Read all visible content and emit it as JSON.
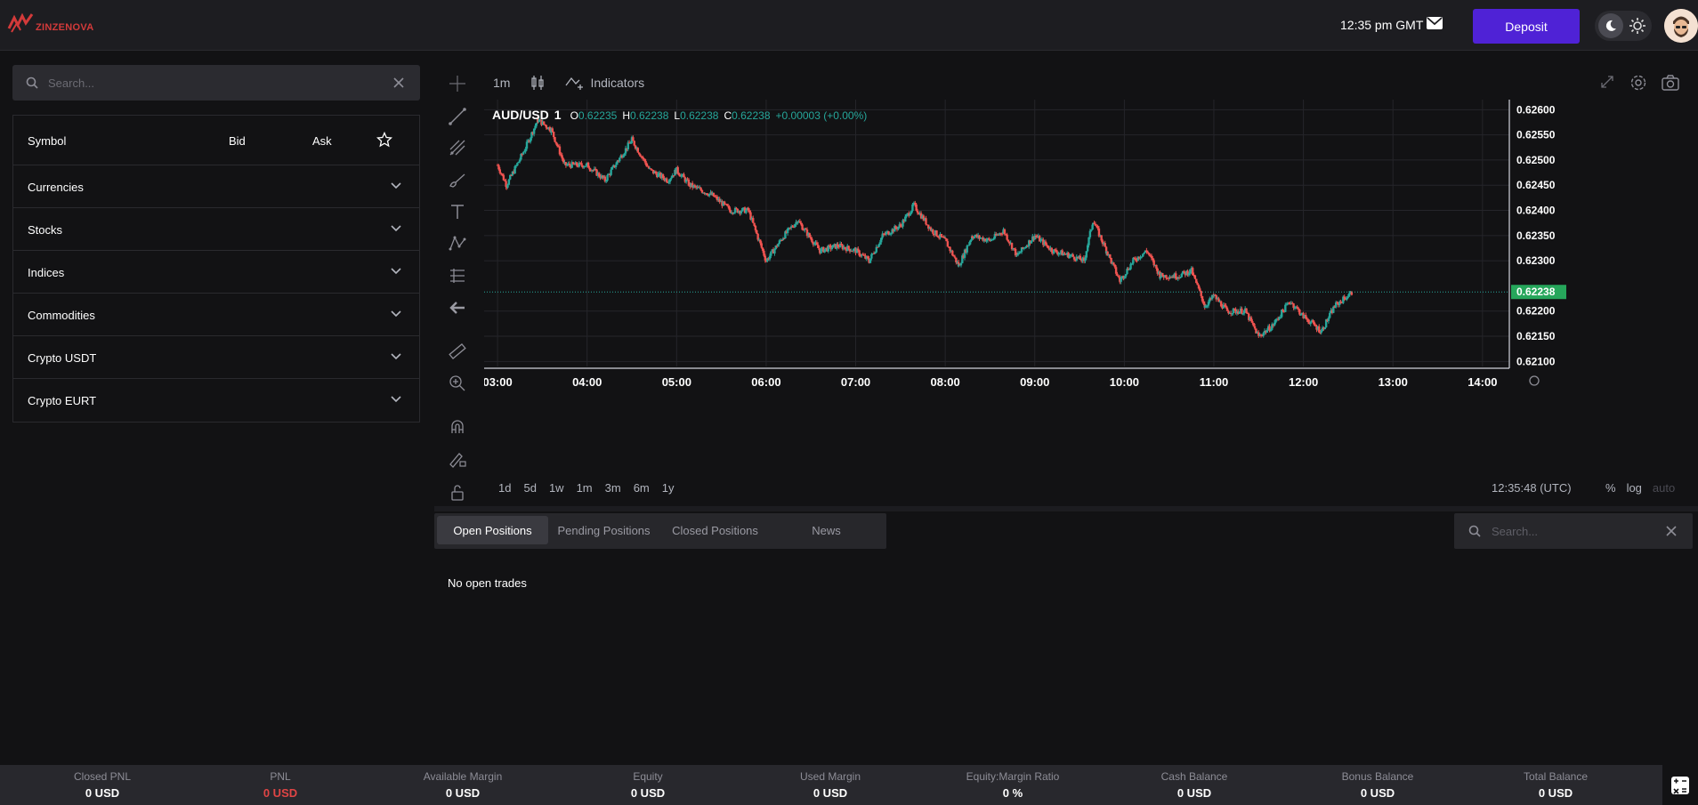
{
  "header": {
    "brand": "ZINZENOVA",
    "clock": "12:35 pm GMT",
    "deposit_label": "Deposit"
  },
  "sidebar": {
    "search_placeholder": "Search...",
    "columns": {
      "symbol": "Symbol",
      "bid": "Bid",
      "ask": "Ask"
    },
    "categories": [
      "Currencies",
      "Stocks",
      "Indices",
      "Commodities",
      "Crypto USDT",
      "Crypto EURT"
    ]
  },
  "chart_toolbar": {
    "timeframe": "1m",
    "indicators_label": "Indicators"
  },
  "chart_header": {
    "symbol": "AUD/USD",
    "interval": "1",
    "o_label": "O",
    "o": "0.62235",
    "h_label": "H",
    "h": "0.62238",
    "l_label": "L",
    "l": "0.62238",
    "c_label": "C",
    "c": "0.62238",
    "change": "+0.00003 (+0.00%)"
  },
  "chart_data": {
    "type": "candlestick",
    "series": [
      {
        "values": [
          [
            3.0,
            0.6249
          ],
          [
            3.1,
            0.6245
          ],
          [
            3.3,
            0.6252
          ],
          [
            3.45,
            0.6258
          ],
          [
            3.6,
            0.6256
          ],
          [
            3.75,
            0.6249
          ],
          [
            4.0,
            0.6249
          ],
          [
            4.2,
            0.6246
          ],
          [
            4.35,
            0.625
          ],
          [
            4.5,
            0.6254
          ],
          [
            4.7,
            0.6248
          ],
          [
            4.9,
            0.6246
          ],
          [
            5.0,
            0.6248
          ],
          [
            5.15,
            0.6245
          ],
          [
            5.4,
            0.6243
          ],
          [
            5.6,
            0.624
          ],
          [
            5.8,
            0.624
          ],
          [
            6.0,
            0.623
          ],
          [
            6.2,
            0.6235
          ],
          [
            6.35,
            0.6238
          ],
          [
            6.6,
            0.6232
          ],
          [
            6.8,
            0.6233
          ],
          [
            7.0,
            0.6232
          ],
          [
            7.15,
            0.623
          ],
          [
            7.3,
            0.6235
          ],
          [
            7.5,
            0.6237
          ],
          [
            7.65,
            0.6241
          ],
          [
            7.85,
            0.6236
          ],
          [
            8.0,
            0.6234
          ],
          [
            8.15,
            0.6229
          ],
          [
            8.3,
            0.6235
          ],
          [
            8.5,
            0.6234
          ],
          [
            8.65,
            0.6236
          ],
          [
            8.8,
            0.6231
          ],
          [
            9.0,
            0.6235
          ],
          [
            9.2,
            0.6232
          ],
          [
            9.4,
            0.6231
          ],
          [
            9.55,
            0.623
          ],
          [
            9.65,
            0.6238
          ],
          [
            9.8,
            0.6232
          ],
          [
            9.95,
            0.6226
          ],
          [
            10.1,
            0.623
          ],
          [
            10.25,
            0.6232
          ],
          [
            10.4,
            0.6227
          ],
          [
            10.6,
            0.6227
          ],
          [
            10.75,
            0.6228
          ],
          [
            10.9,
            0.6221
          ],
          [
            11.0,
            0.6223
          ],
          [
            11.15,
            0.622
          ],
          [
            11.35,
            0.622
          ],
          [
            11.5,
            0.6215
          ],
          [
            11.65,
            0.6217
          ],
          [
            11.85,
            0.6222
          ],
          [
            12.0,
            0.6219
          ],
          [
            12.2,
            0.6216
          ],
          [
            12.35,
            0.6221
          ],
          [
            12.55,
            0.62238
          ]
        ]
      }
    ],
    "x_range": [
      2.85,
      14.3
    ],
    "y_range": [
      0.6209,
      0.6262
    ],
    "x_ticks": [
      "03:00",
      "04:00",
      "05:00",
      "06:00",
      "07:00",
      "08:00",
      "09:00",
      "10:00",
      "11:00",
      "12:00",
      "13:00",
      "14:00"
    ],
    "x_tick_values": [
      3,
      4,
      5,
      6,
      7,
      8,
      9,
      10,
      11,
      12,
      13,
      14
    ],
    "y_ticks": [
      "0.62600",
      "0.62550",
      "0.62500",
      "0.62450",
      "0.62400",
      "0.62350",
      "0.62300",
      "0.62200",
      "0.62150",
      "0.62100"
    ],
    "y_tick_values": [
      0.626,
      0.6255,
      0.625,
      0.6245,
      0.624,
      0.6235,
      0.623,
      0.622,
      0.6215,
      0.621
    ],
    "last_price": "0.62238",
    "last_price_value": 0.62238,
    "up_color": "#26a69a",
    "down_color": "#ef5350",
    "grid": true
  },
  "chart_footer": {
    "ranges": [
      "1d",
      "5d",
      "1w",
      "1m",
      "3m",
      "6m",
      "1y"
    ],
    "utc_time": "12:35:48 (UTC)",
    "percent": "%",
    "log": "log",
    "auto": "auto"
  },
  "positions": {
    "tabs": [
      "Open Positions",
      "Pending Positions",
      "Closed Positions",
      "News"
    ],
    "active_tab": "Open Positions",
    "search_placeholder": "Search...",
    "empty_message": "No open trades"
  },
  "footer_stats": [
    {
      "label": "Closed PNL",
      "value": "0 USD"
    },
    {
      "label": "PNL",
      "value": "0 USD"
    },
    {
      "label": "Available Margin",
      "value": "0 USD"
    },
    {
      "label": "Equity",
      "value": "0 USD"
    },
    {
      "label": "Used Margin",
      "value": "0 USD"
    },
    {
      "label": "Equity:Margin Ratio",
      "value": "0 %"
    },
    {
      "label": "Cash Balance",
      "value": "0 USD"
    },
    {
      "label": "Bonus Balance",
      "value": "0 USD"
    },
    {
      "label": "Total Balance",
      "value": "0 USD"
    }
  ]
}
